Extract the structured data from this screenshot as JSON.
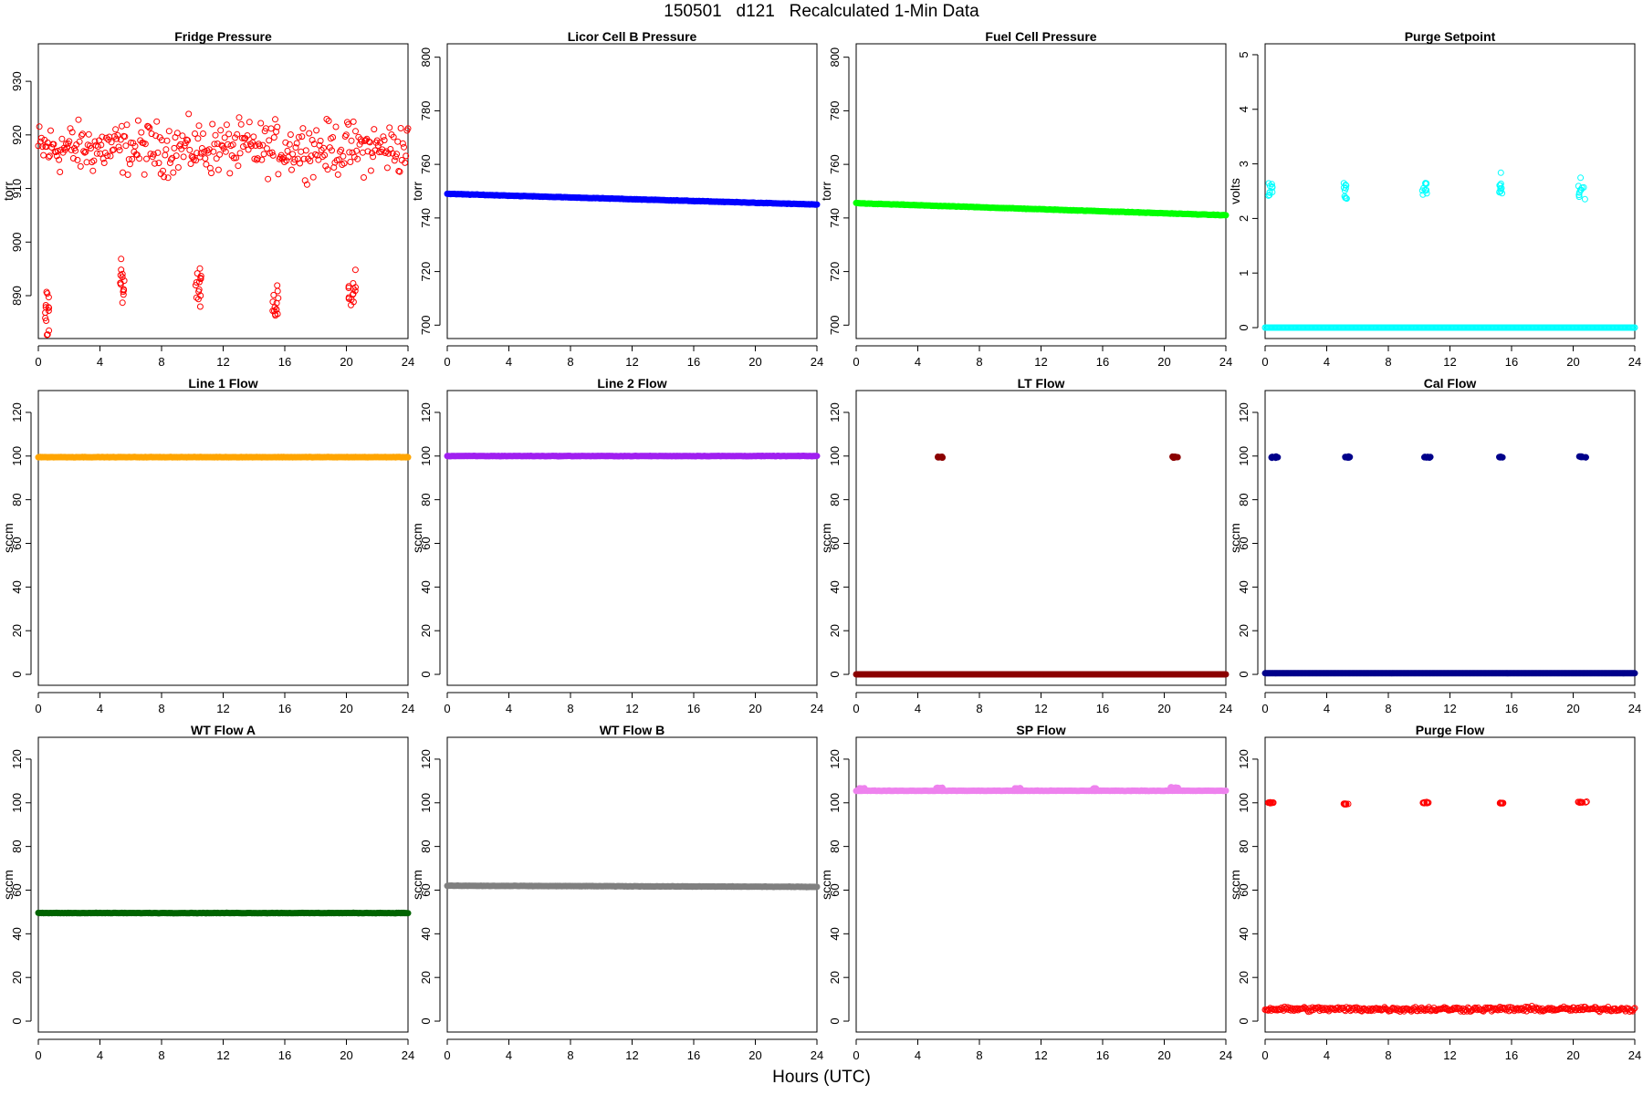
{
  "page": {
    "title": "150501   d121   Recalculated 1-Min Data",
    "x_axis_title": "Hours (UTC)"
  },
  "chart_data": [
    {
      "type": "scatter",
      "id": "fridge-pressure",
      "title": "Fridge Pressure",
      "ylabel": "torr",
      "color": "#ff0000",
      "marker": "open",
      "xlim": [
        0,
        24
      ],
      "ylim": [
        882,
        937
      ],
      "xticks": [
        0,
        4,
        8,
        12,
        16,
        20,
        24
      ],
      "yticks": [
        890,
        900,
        910,
        920,
        930
      ],
      "pattern": {
        "kind": "noisy",
        "base": 917.5,
        "spread": 13,
        "dips": [
          [
            0.4,
            0.7,
            887,
            8
          ],
          [
            5.3,
            5.6,
            893,
            5
          ],
          [
            10.2,
            10.6,
            892,
            5
          ],
          [
            15.2,
            15.6,
            889,
            5
          ],
          [
            20.1,
            20.6,
            891,
            6
          ]
        ]
      }
    },
    {
      "type": "scatter",
      "id": "licor-cell-b-pressure",
      "title": "Licor Cell B Pressure",
      "ylabel": "torr",
      "color": "#0000ff",
      "marker": "filled",
      "xlim": [
        0,
        24
      ],
      "ylim": [
        695,
        805
      ],
      "xticks": [
        0,
        4,
        8,
        12,
        16,
        20,
        24
      ],
      "yticks": [
        700,
        720,
        740,
        760,
        780,
        800
      ],
      "pattern": {
        "kind": "trend",
        "start": 749,
        "end": 745
      }
    },
    {
      "type": "scatter",
      "id": "fuel-cell-pressure",
      "title": "Fuel Cell Pressure",
      "ylabel": "torr",
      "color": "#00ff00",
      "marker": "filled",
      "xlim": [
        0,
        24
      ],
      "ylim": [
        695,
        805
      ],
      "xticks": [
        0,
        4,
        8,
        12,
        16,
        20,
        24
      ],
      "yticks": [
        700,
        720,
        740,
        760,
        780,
        800
      ],
      "pattern": {
        "kind": "trend",
        "start": 745.5,
        "end": 741
      }
    },
    {
      "type": "scatter",
      "id": "purge-setpoint",
      "title": "Purge Setpoint",
      "ylabel": "volts",
      "color": "#00ffff",
      "marker": "open",
      "xlim": [
        0,
        24
      ],
      "ylim": [
        -0.2,
        5.2
      ],
      "xticks": [
        0,
        4,
        8,
        12,
        16,
        20,
        24
      ],
      "yticks": [
        0,
        1,
        2,
        3,
        4,
        5
      ],
      "pattern": {
        "kind": "base-bursts",
        "base": 0,
        "bursts": [
          [
            0.2,
            0.5,
            2.55
          ],
          [
            5.1,
            5.3,
            2.5
          ],
          [
            10.2,
            10.5,
            2.55
          ],
          [
            15.2,
            15.4,
            2.5
          ],
          [
            20.3,
            20.8,
            2.55
          ]
        ]
      }
    },
    {
      "type": "scatter",
      "id": "line-1-flow",
      "title": "Line 1 Flow",
      "ylabel": "sccm",
      "color": "#ffa500",
      "marker": "filled",
      "xlim": [
        0,
        24
      ],
      "ylim": [
        -5,
        130
      ],
      "xticks": [
        0,
        4,
        8,
        12,
        16,
        20,
        24
      ],
      "yticks": [
        0,
        20,
        40,
        60,
        80,
        100,
        120
      ],
      "pattern": {
        "kind": "trend",
        "start": 99.5,
        "end": 99.5
      }
    },
    {
      "type": "scatter",
      "id": "line-2-flow",
      "title": "Line 2 Flow",
      "ylabel": "sccm",
      "color": "#a020f0",
      "marker": "filled",
      "xlim": [
        0,
        24
      ],
      "ylim": [
        -5,
        130
      ],
      "xticks": [
        0,
        4,
        8,
        12,
        16,
        20,
        24
      ],
      "yticks": [
        0,
        20,
        40,
        60,
        80,
        100,
        120
      ],
      "pattern": {
        "kind": "trend",
        "start": 100,
        "end": 100
      }
    },
    {
      "type": "scatter",
      "id": "lt-flow",
      "title": "LT Flow",
      "ylabel": "sccm",
      "color": "#8b0000",
      "marker": "filled",
      "xlim": [
        0,
        24
      ],
      "ylim": [
        -5,
        130
      ],
      "xticks": [
        0,
        4,
        8,
        12,
        16,
        20,
        24
      ],
      "yticks": [
        0,
        20,
        40,
        60,
        80,
        100,
        120
      ],
      "pattern": {
        "kind": "base-bursts",
        "base": 0,
        "bursts": [
          [
            5.3,
            5.6,
            99.5
          ],
          [
            20.5,
            20.9,
            99.5
          ]
        ]
      }
    },
    {
      "type": "scatter",
      "id": "cal-flow",
      "title": "Cal Flow",
      "ylabel": "sccm",
      "color": "#00008b",
      "marker": "filled",
      "xlim": [
        0,
        24
      ],
      "ylim": [
        -5,
        130
      ],
      "xticks": [
        0,
        4,
        8,
        12,
        16,
        20,
        24
      ],
      "yticks": [
        0,
        20,
        40,
        60,
        80,
        100,
        120
      ],
      "pattern": {
        "kind": "base-bursts",
        "base": 0.5,
        "bursts": [
          [
            0.4,
            0.9,
            99.5
          ],
          [
            5.2,
            5.5,
            99.5
          ],
          [
            10.3,
            10.8,
            99.5
          ],
          [
            15.2,
            15.5,
            99.5
          ],
          [
            20.3,
            20.9,
            99.5
          ]
        ]
      }
    },
    {
      "type": "scatter",
      "id": "wt-flow-a",
      "title": "WT Flow A",
      "ylabel": "sccm",
      "color": "#006400",
      "marker": "filled",
      "xlim": [
        0,
        24
      ],
      "ylim": [
        -5,
        130
      ],
      "xticks": [
        0,
        4,
        8,
        12,
        16,
        20,
        24
      ],
      "yticks": [
        0,
        20,
        40,
        60,
        80,
        100,
        120
      ],
      "pattern": {
        "kind": "trend",
        "start": 49.5,
        "end": 49.5
      }
    },
    {
      "type": "scatter",
      "id": "wt-flow-b",
      "title": "WT Flow B",
      "ylabel": "sccm",
      "color": "#808080",
      "marker": "filled",
      "xlim": [
        0,
        24
      ],
      "ylim": [
        -5,
        130
      ],
      "xticks": [
        0,
        4,
        8,
        12,
        16,
        20,
        24
      ],
      "yticks": [
        0,
        20,
        40,
        60,
        80,
        100,
        120
      ],
      "pattern": {
        "kind": "trend",
        "start": 62,
        "end": 61.5
      }
    },
    {
      "type": "scatter",
      "id": "sp-flow",
      "title": "SP Flow",
      "ylabel": "sccm",
      "color": "#ee82ee",
      "marker": "filled",
      "xlim": [
        0,
        24
      ],
      "ylim": [
        -5,
        130
      ],
      "xticks": [
        0,
        4,
        8,
        12,
        16,
        20,
        24
      ],
      "yticks": [
        0,
        20,
        40,
        60,
        80,
        100,
        120
      ],
      "pattern": {
        "kind": "trend-bumps",
        "start": 105.5,
        "end": 105.5,
        "bumps": [
          [
            0.2,
            0.6,
            106.5
          ],
          [
            5.2,
            5.6,
            106.8
          ],
          [
            10.3,
            10.7,
            106.5
          ],
          [
            15.3,
            15.6,
            106.5
          ],
          [
            20.4,
            20.9,
            107
          ]
        ]
      }
    },
    {
      "type": "scatter",
      "id": "purge-flow",
      "title": "Purge Flow",
      "ylabel": "sccm",
      "color": "#ff0000",
      "marker": "open",
      "xlim": [
        0,
        24
      ],
      "ylim": [
        -5,
        130
      ],
      "xticks": [
        0,
        4,
        8,
        12,
        16,
        20,
        24
      ],
      "yticks": [
        0,
        20,
        40,
        60,
        80,
        100,
        120
      ],
      "pattern": {
        "kind": "noisy-bursts",
        "base": 5.5,
        "spread": 3,
        "bursts": [
          [
            0.2,
            0.6,
            100
          ],
          [
            5.1,
            5.4,
            99.5
          ],
          [
            10.2,
            10.6,
            100
          ],
          [
            15.2,
            15.5,
            99.8
          ],
          [
            20.3,
            20.9,
            100.3
          ]
        ]
      }
    }
  ]
}
